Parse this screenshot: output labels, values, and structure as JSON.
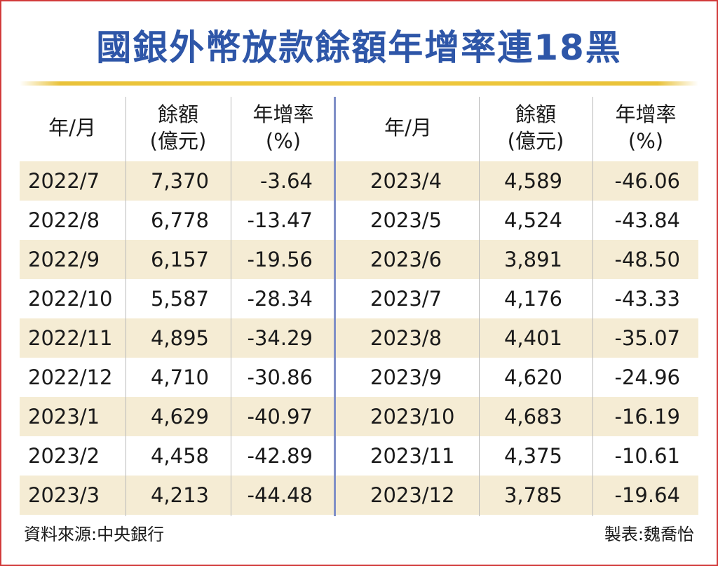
{
  "title": "國銀外幣放款餘額年增率連18黑",
  "columns": {
    "month_label": "年/月",
    "balance_label_1": "餘額",
    "balance_label_2": "(億元)",
    "rate_label_1": "年增率",
    "rate_label_2": "(%)"
  },
  "chart_data": {
    "type": "table",
    "title": "國銀外幣放款餘額年增率連18黑",
    "columns": [
      "年/月",
      "餘額(億元)",
      "年增率(%)"
    ],
    "rows": [
      {
        "month": "2022/7",
        "balance": "7,370",
        "rate": "-3.64"
      },
      {
        "month": "2022/8",
        "balance": "6,778",
        "rate": "-13.47"
      },
      {
        "month": "2022/9",
        "balance": "6,157",
        "rate": "-19.56"
      },
      {
        "month": "2022/10",
        "balance": "5,587",
        "rate": "-28.34"
      },
      {
        "month": "2022/11",
        "balance": "4,895",
        "rate": "-34.29"
      },
      {
        "month": "2022/12",
        "balance": "4,710",
        "rate": "-30.86"
      },
      {
        "month": "2023/1",
        "balance": "4,629",
        "rate": "-40.97"
      },
      {
        "month": "2023/2",
        "balance": "4,458",
        "rate": "-42.89"
      },
      {
        "month": "2023/3",
        "balance": "4,213",
        "rate": "-44.48"
      },
      {
        "month": "2023/4",
        "balance": "4,589",
        "rate": "-46.06"
      },
      {
        "month": "2023/5",
        "balance": "4,524",
        "rate": "-43.84"
      },
      {
        "month": "2023/6",
        "balance": "3,891",
        "rate": "-48.50"
      },
      {
        "month": "2023/7",
        "balance": "4,176",
        "rate": "-43.33"
      },
      {
        "month": "2023/8",
        "balance": "4,401",
        "rate": "-35.07"
      },
      {
        "month": "2023/9",
        "balance": "4,620",
        "rate": "-24.96"
      },
      {
        "month": "2023/10",
        "balance": "4,683",
        "rate": "-16.19"
      },
      {
        "month": "2023/11",
        "balance": "4,375",
        "rate": "-10.61"
      },
      {
        "month": "2023/12",
        "balance": "3,785",
        "rate": "-19.64"
      }
    ]
  },
  "footer": {
    "source": "資料來源:中央銀行",
    "author": "製表:魏喬怡"
  },
  "colors": {
    "title": "#2e56a8",
    "frame": "#d23a3a",
    "gold_rule": "#f0c93c",
    "stripe": "#f5ecd4",
    "divider": "#7f8fc7"
  }
}
